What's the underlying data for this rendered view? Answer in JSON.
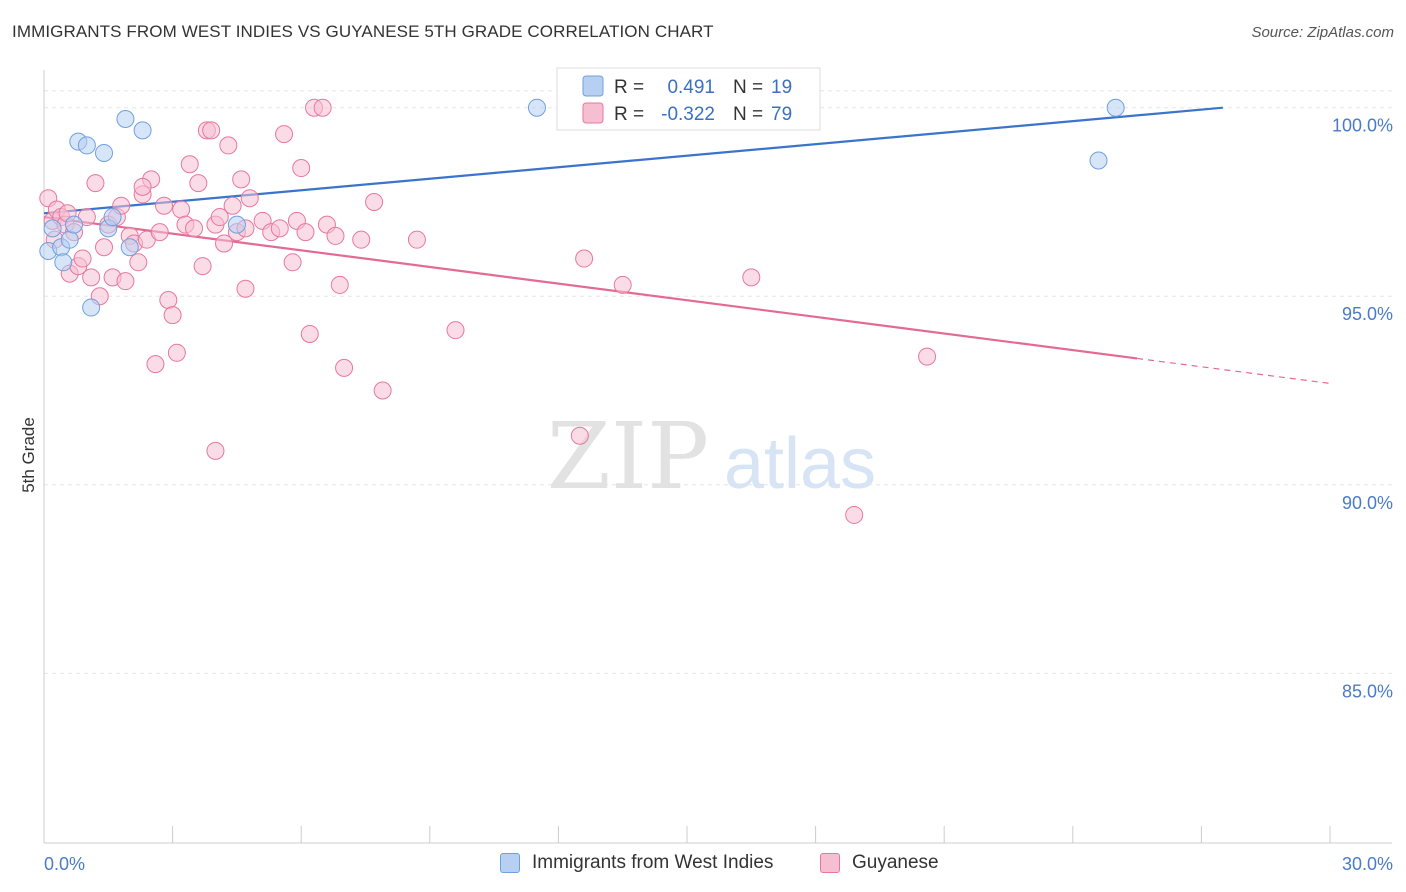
{
  "header": {
    "title": "IMMIGRANTS FROM WEST INDIES VS GUYANESE 5TH GRADE CORRELATION CHART",
    "source": "Source: ZipAtlas.com"
  },
  "watermark": {
    "zip": "ZIP",
    "atlas": "atlas"
  },
  "chart_data": {
    "type": "scatter",
    "title": "IMMIGRANTS FROM WEST INDIES VS GUYANESE 5TH GRADE CORRELATION CHART",
    "ylabel": "5th Grade",
    "xlabel": "",
    "xlim": [
      0,
      30
    ],
    "ylim": [
      80.5,
      101
    ],
    "x_tick_labels": [
      {
        "value": 0,
        "label": "0.0%"
      },
      {
        "value": 30,
        "label": "30.0%"
      }
    ],
    "y_tick_labels": [
      {
        "value": 100,
        "label": "100.0%"
      },
      {
        "value": 95,
        "label": "95.0%"
      },
      {
        "value": 90,
        "label": "90.0%"
      },
      {
        "value": 85,
        "label": "85.0%"
      }
    ],
    "grid": true,
    "legend_position": "top-center",
    "stats": [
      {
        "r_label": "R =",
        "r": "0.491",
        "n_label": "N =",
        "n": "19"
      },
      {
        "r_label": "R =",
        "r": "-0.322",
        "n_label": "N =",
        "n": "79"
      }
    ],
    "series": [
      {
        "name": "Immigrants from West Indies",
        "color": "#6fa0de",
        "fill": "#b7d0f2",
        "trend": {
          "x0": 0,
          "y0": 97.2,
          "x1": 27.5,
          "y1": 100.0,
          "dash_to": 27.5
        },
        "points": [
          [
            0.1,
            96.2
          ],
          [
            0.2,
            96.8
          ],
          [
            0.4,
            96.3
          ],
          [
            0.45,
            95.9
          ],
          [
            0.6,
            96.5
          ],
          [
            0.7,
            96.9
          ],
          [
            0.8,
            99.1
          ],
          [
            1.0,
            99.0
          ],
          [
            1.1,
            94.7
          ],
          [
            1.4,
            98.8
          ],
          [
            1.5,
            96.8
          ],
          [
            1.6,
            97.1
          ],
          [
            1.9,
            99.7
          ],
          [
            2.0,
            96.3
          ],
          [
            2.3,
            99.4
          ],
          [
            4.5,
            96.9
          ],
          [
            11.5,
            100.0
          ],
          [
            24.6,
            98.6
          ],
          [
            25.0,
            100.0
          ]
        ]
      },
      {
        "name": "Guyanese",
        "color": "#e8779f",
        "fill": "#f6bfd1",
        "trend": {
          "x0": 0,
          "y0": 97.1,
          "x1": 25.5,
          "y1": 93.35,
          "dash_to": 30
        },
        "points": [
          [
            0.1,
            97.6
          ],
          [
            0.2,
            97.0
          ],
          [
            0.25,
            96.5
          ],
          [
            0.3,
            97.3
          ],
          [
            0.4,
            97.1
          ],
          [
            0.5,
            96.9
          ],
          [
            0.55,
            97.2
          ],
          [
            0.6,
            95.6
          ],
          [
            0.7,
            96.7
          ],
          [
            0.8,
            95.8
          ],
          [
            0.9,
            96.0
          ],
          [
            1.0,
            97.1
          ],
          [
            1.1,
            95.5
          ],
          [
            1.2,
            98.0
          ],
          [
            1.3,
            95.0
          ],
          [
            1.4,
            96.3
          ],
          [
            1.5,
            96.9
          ],
          [
            1.6,
            95.5
          ],
          [
            1.7,
            97.1
          ],
          [
            1.8,
            97.4
          ],
          [
            1.9,
            95.4
          ],
          [
            2.0,
            96.6
          ],
          [
            2.1,
            96.4
          ],
          [
            2.2,
            95.9
          ],
          [
            2.3,
            97.7
          ],
          [
            2.4,
            96.5
          ],
          [
            2.5,
            98.1
          ],
          [
            2.6,
            93.2
          ],
          [
            2.7,
            96.7
          ],
          [
            2.8,
            97.4
          ],
          [
            2.9,
            94.9
          ],
          [
            3.0,
            94.5
          ],
          [
            3.1,
            93.5
          ],
          [
            3.2,
            97.3
          ],
          [
            3.3,
            96.9
          ],
          [
            3.4,
            98.5
          ],
          [
            3.5,
            96.8
          ],
          [
            3.6,
            98.0
          ],
          [
            3.7,
            95.8
          ],
          [
            3.8,
            99.4
          ],
          [
            3.9,
            99.4
          ],
          [
            4.0,
            96.9
          ],
          [
            4.1,
            97.1
          ],
          [
            4.2,
            96.4
          ],
          [
            4.3,
            99.0
          ],
          [
            4.4,
            97.4
          ],
          [
            4.5,
            96.7
          ],
          [
            4.6,
            98.1
          ],
          [
            4.7,
            95.2
          ],
          [
            4.8,
            97.6
          ],
          [
            5.1,
            97.0
          ],
          [
            5.3,
            96.7
          ],
          [
            5.5,
            96.8
          ],
          [
            5.6,
            99.3
          ],
          [
            5.8,
            95.9
          ],
          [
            5.9,
            97.0
          ],
          [
            6.0,
            98.4
          ],
          [
            6.2,
            94.0
          ],
          [
            6.3,
            100.0
          ],
          [
            6.5,
            100.0
          ],
          [
            6.6,
            96.9
          ],
          [
            6.8,
            96.6
          ],
          [
            6.9,
            95.3
          ],
          [
            7.0,
            93.1
          ],
          [
            7.4,
            96.5
          ],
          [
            7.7,
            97.5
          ],
          [
            7.9,
            92.5
          ],
          [
            4.0,
            90.9
          ],
          [
            4.7,
            96.8
          ],
          [
            9.6,
            94.1
          ],
          [
            12.5,
            91.3
          ],
          [
            12.6,
            96.0
          ],
          [
            13.5,
            95.3
          ],
          [
            16.5,
            95.5
          ],
          [
            18.9,
            89.2
          ],
          [
            20.6,
            93.4
          ],
          [
            6.1,
            96.7
          ],
          [
            2.3,
            97.9
          ],
          [
            8.7,
            96.5
          ]
        ]
      }
    ]
  }
}
